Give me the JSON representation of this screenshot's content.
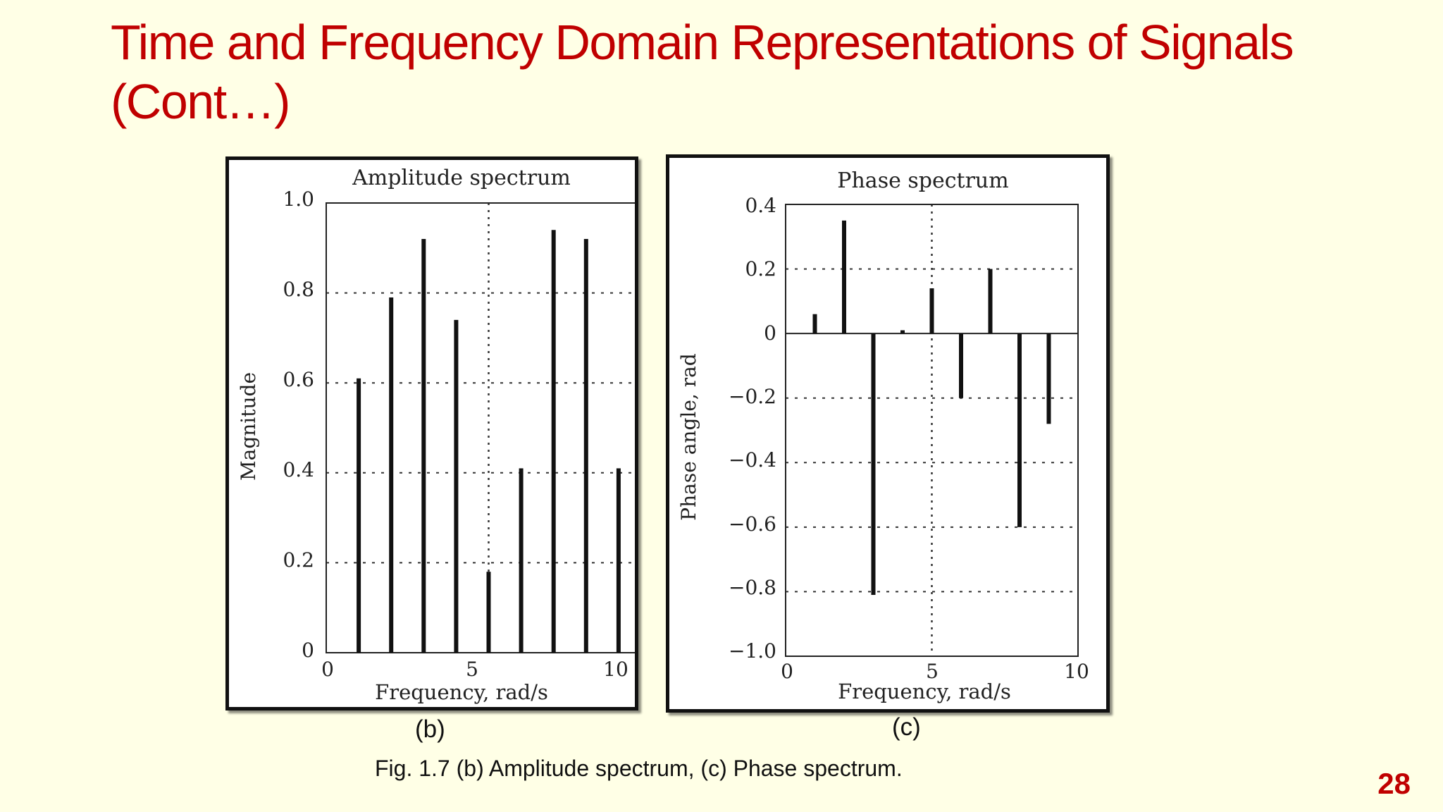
{
  "slide": {
    "title_line1": "Time and Frequency Domain Representations of Signals",
    "title_line2": "(Cont…)",
    "subfig_b": "(b)",
    "subfig_c": "(c)",
    "caption": "Fig. 1.7 (b) Amplitude spectrum, (c) Phase spectrum.",
    "page_number": "28",
    "title_color": "#C00000",
    "background_color": "#FFFFE6"
  },
  "chart_data": [
    {
      "type": "bar",
      "title": "Amplitude spectrum",
      "xlabel": "Frequency, rad/s",
      "ylabel": "Magnitude",
      "xlim": [
        0,
        10
      ],
      "ylim": [
        0,
        1.0
      ],
      "xticks": [
        "0",
        "5",
        "10"
      ],
      "yticks": [
        "0",
        "0.2",
        "0.4",
        "0.6",
        "0.8",
        "1.0"
      ],
      "grid": "dotted (0.2, 0.4, 0.6, 0.8 and x = 5)",
      "x": [
        1,
        2,
        3,
        4,
        5,
        6,
        7,
        8,
        9
      ],
      "values": [
        0.61,
        0.79,
        0.92,
        0.74,
        0.18,
        0.41,
        0.94,
        0.92,
        0.41
      ]
    },
    {
      "type": "bar",
      "title": "Phase spectrum",
      "xlabel": "Frequency, rad/s",
      "ylabel": "Phase angle, rad",
      "xlim": [
        0,
        10
      ],
      "ylim": [
        -1.0,
        0.4
      ],
      "xticks": [
        "0",
        "5",
        "10"
      ],
      "yticks": [
        "0.4",
        "0.2",
        "0",
        "−0.2",
        "−0.4",
        "−0.6",
        "−0.8",
        "−1.0"
      ],
      "grid": "dotted (0.2, −0.2, −0.4, −0.6, −0.8 and x = 5)",
      "x": [
        1,
        2,
        3,
        4,
        5,
        6,
        7,
        8,
        9
      ],
      "values": [
        0.06,
        0.35,
        -0.81,
        0.01,
        0.14,
        -0.2,
        0.2,
        -0.6,
        -0.28
      ]
    }
  ]
}
